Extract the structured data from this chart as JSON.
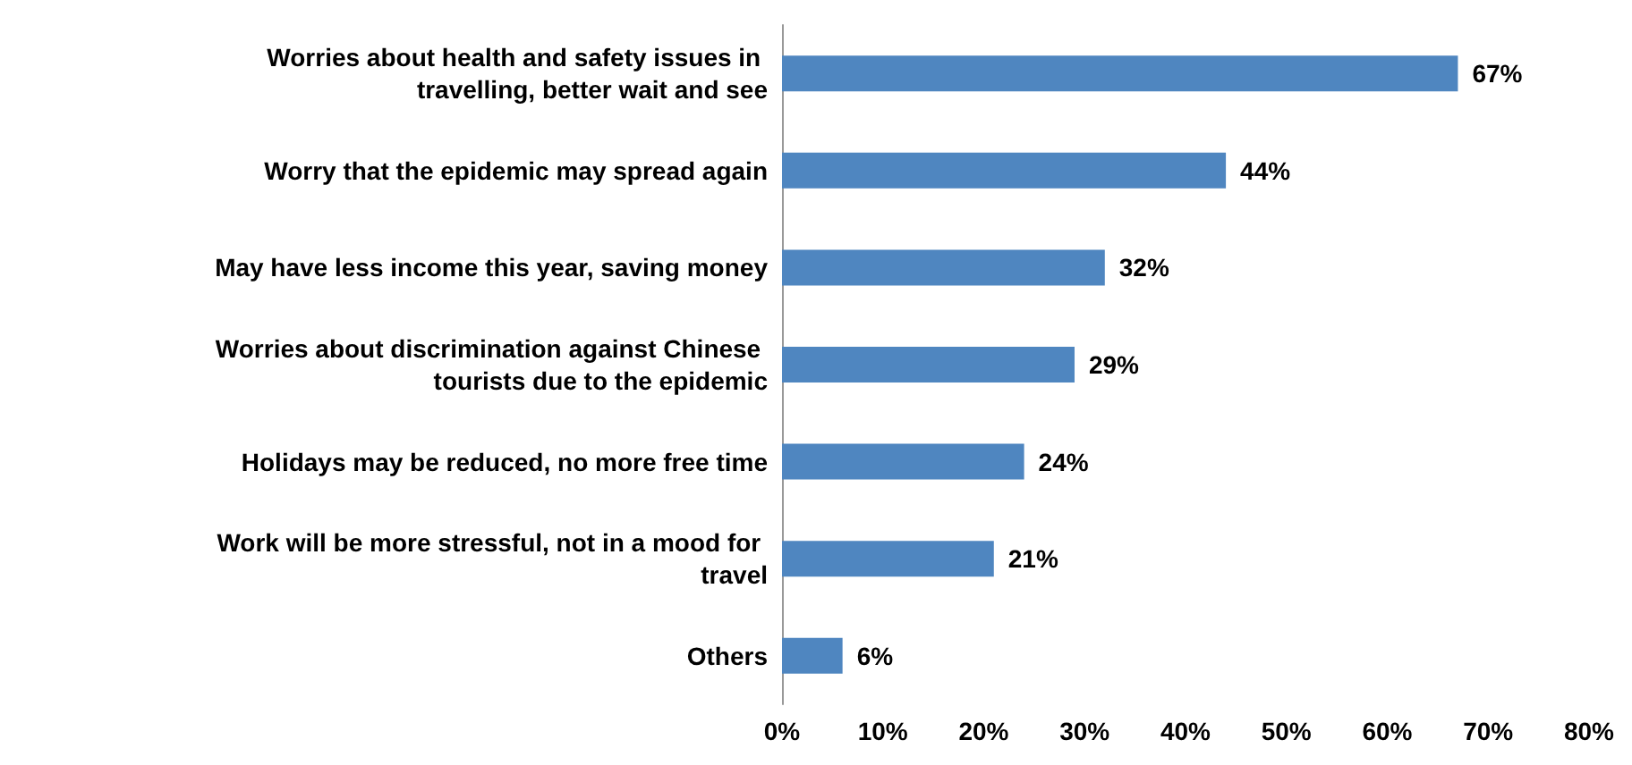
{
  "chart_data": {
    "type": "bar",
    "orientation": "horizontal",
    "categories": [
      "Worries about health and safety issues in travelling, better wait and see",
      "Worry that the epidemic may spread again",
      "May have less income this year, saving money",
      "Worries about discrimination against Chinese tourists due to the epidemic",
      "Holidays may be reduced, no more free time",
      "Work will be more stressful, not in a mood for travel",
      "Others"
    ],
    "values": [
      67,
      44,
      32,
      29,
      24,
      21,
      6
    ],
    "value_labels": [
      "67%",
      "44%",
      "32%",
      "29%",
      "24%",
      "21%",
      "6%"
    ],
    "color": "#4f86c0",
    "xlim": [
      0,
      80
    ],
    "xticks": [
      {
        "value": 0,
        "label": "0%"
      },
      {
        "value": 10,
        "label": "10%"
      },
      {
        "value": 20,
        "label": "20%"
      },
      {
        "value": 30,
        "label": "30%"
      },
      {
        "value": 40,
        "label": "40%"
      },
      {
        "value": 50,
        "label": "50%"
      },
      {
        "value": 60,
        "label": "60%"
      },
      {
        "value": 70,
        "label": "70%"
      },
      {
        "value": 80,
        "label": "80%"
      }
    ],
    "grid": false
  }
}
